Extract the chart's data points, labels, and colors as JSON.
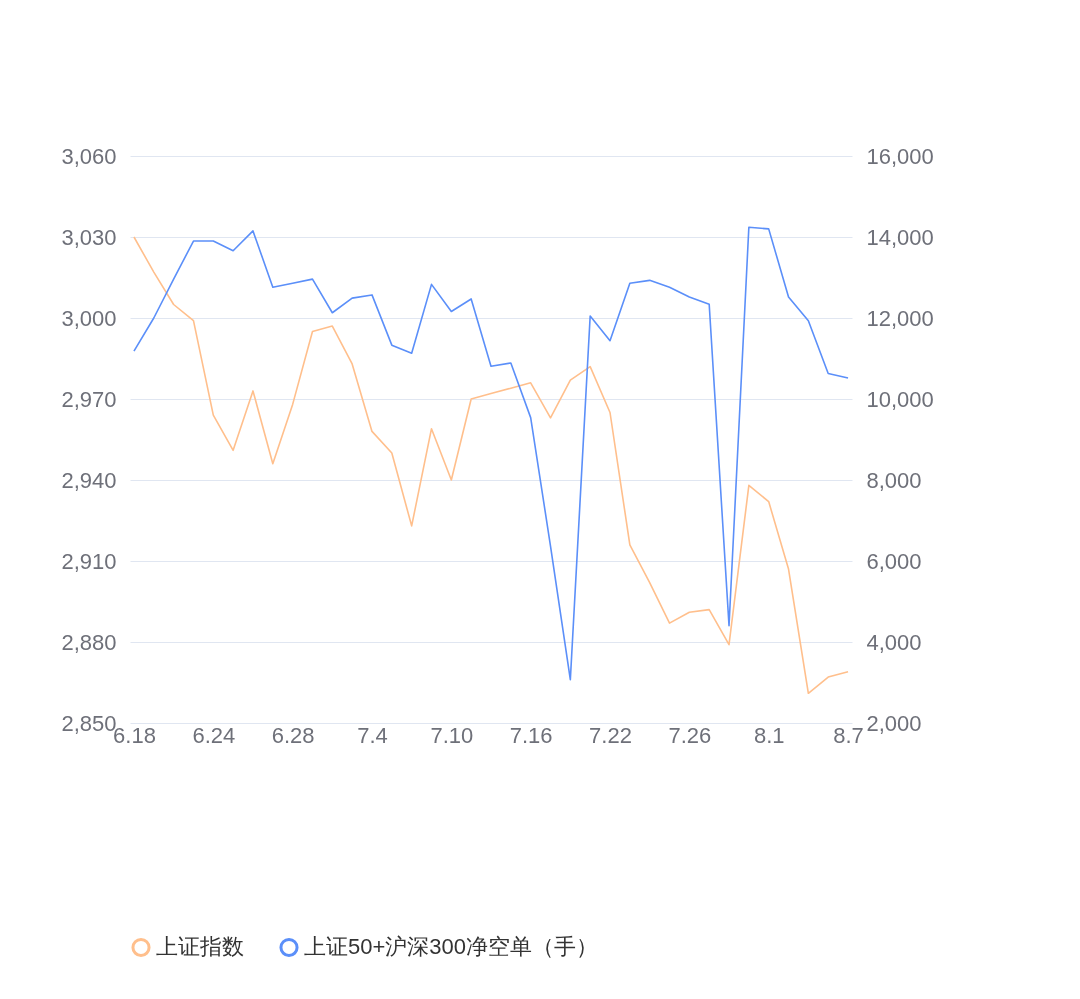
{
  "chart_data": {
    "type": "line",
    "categories": [
      "6.18",
      null,
      null,
      null,
      "6.24",
      null,
      null,
      null,
      "6.28",
      null,
      null,
      null,
      "7.4",
      null,
      null,
      null,
      "7.10",
      null,
      null,
      null,
      "7.16",
      null,
      null,
      null,
      "7.22",
      null,
      null,
      null,
      "7.26",
      null,
      null,
      null,
      "8.1",
      null,
      null,
      null,
      "8.7"
    ],
    "series": [
      {
        "name": "上证指数",
        "color": "#ffbf8c",
        "values": [
          3030,
          3017,
          3005,
          2999,
          2964,
          2951,
          2973,
          2946,
          2968,
          2995,
          2997,
          2983,
          2958,
          2950,
          2923,
          2959,
          2940,
          2970,
          2972,
          2974,
          2976,
          2963,
          2977,
          2982,
          2965,
          2916,
          2902,
          2887,
          2891,
          2892,
          2879,
          2938,
          2932,
          2907,
          2861,
          2867,
          2869
        ]
      },
      {
        "name": "上证50+沪深300净空单（手）",
        "color": "#5b8ff9",
        "axis": "y2",
        "values": [
          11180,
          12000,
          12960,
          13900,
          13900,
          13660,
          14150,
          12760,
          12860,
          12960,
          12130,
          12490,
          12570,
          11330,
          11130,
          12830,
          12160,
          12470,
          10810,
          10890,
          9540,
          6370,
          3070,
          12050,
          11440,
          12860,
          12930,
          12760,
          12520,
          12340,
          4400,
          14240,
          14200,
          12520,
          11930,
          10630,
          10520
        ]
      }
    ],
    "ylim": [
      2850,
      3060
    ],
    "yticks": [
      {
        "value": 2850,
        "label": "2,850"
      },
      {
        "value": 2880,
        "label": "2,880"
      },
      {
        "value": 2910,
        "label": "2,910"
      },
      {
        "value": 2940,
        "label": "2,940"
      },
      {
        "value": 2970,
        "label": "2,970"
      },
      {
        "value": 3000,
        "label": "3,000"
      },
      {
        "value": 3030,
        "label": "3,030"
      },
      {
        "value": 3060,
        "label": "3,060"
      }
    ],
    "y2lim": [
      2000,
      16000
    ],
    "y2ticks": [
      {
        "value": 2000,
        "label": "2,000"
      },
      {
        "value": 4000,
        "label": "4,000"
      },
      {
        "value": 6000,
        "label": "6,000"
      },
      {
        "value": 8000,
        "label": "8,000"
      },
      {
        "value": 10000,
        "label": "10,000"
      },
      {
        "value": 12000,
        "label": "12,000"
      },
      {
        "value": 14000,
        "label": "14,000"
      },
      {
        "value": 16000,
        "label": "16,000"
      }
    ],
    "grid": "y",
    "legend": "bottom"
  }
}
